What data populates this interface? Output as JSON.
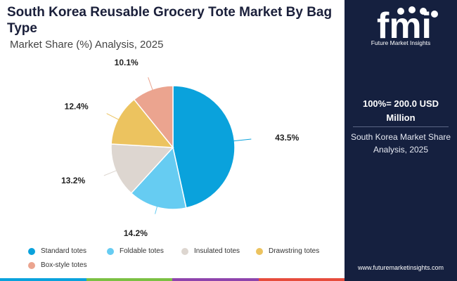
{
  "header": {
    "title": "South Korea Reusable Grocery Tote Market By Bag Type",
    "subtitle": "Market Share (%) Analysis, 2025"
  },
  "chart_data": {
    "type": "pie",
    "title": "South Korea Reusable Grocery Tote Market By Bag Type",
    "subtitle": "Market Share (%) Analysis, 2025",
    "unit": "%",
    "slices": [
      {
        "label": "Standard totes",
        "value": 43.5,
        "display": "43.5%",
        "color": "#0aa2dc"
      },
      {
        "label": "Foldable totes",
        "value": 14.2,
        "display": "14.2%",
        "color": "#66ccf2"
      },
      {
        "label": "Insulated totes",
        "value": 13.2,
        "display": "13.2%",
        "color": "#ddd6d0"
      },
      {
        "label": "Drawstring totes",
        "value": 12.4,
        "display": "12.4%",
        "color": "#ecc35f"
      },
      {
        "label": "Box-style totes",
        "value": 10.1,
        "display": "10.1%",
        "color": "#eba48f"
      }
    ],
    "legend_position": "bottom"
  },
  "side_panel": {
    "logo_text": "fmi",
    "logo_tagline": "Future Market Insights",
    "total_value": "100%= 200.0 USD Million",
    "description": "South Korea Market Share Analysis, 2025",
    "website": "www.futuremarketinsights.com"
  },
  "colors": {
    "panel_bg": "#15203f",
    "title": "#1a1f3a",
    "bottom_bar": [
      "#0aa2dc",
      "#7bc043",
      "#8e44ad",
      "#e74c3c"
    ]
  }
}
